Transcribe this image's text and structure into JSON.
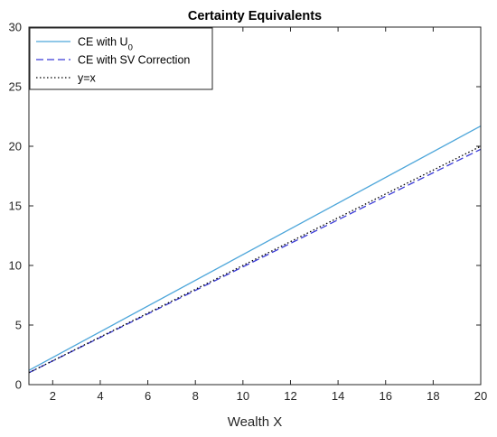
{
  "chart_data": {
    "type": "line",
    "title": "Certainty Equivalents",
    "xlabel": "Wealth X",
    "ylabel": "",
    "xlim": [
      1,
      20
    ],
    "ylim": [
      0,
      30
    ],
    "xticks": [
      2,
      4,
      6,
      8,
      10,
      12,
      14,
      16,
      18,
      20
    ],
    "yticks": [
      0,
      5,
      10,
      15,
      20,
      25,
      30
    ],
    "grid": false,
    "legend_position": "top-left",
    "series": [
      {
        "name": "CE with U0",
        "legend_main": "CE with U",
        "legend_sub": "0",
        "color": "#4DA6DA",
        "style": "solid",
        "x": [
          1,
          20
        ],
        "y": [
          1.2,
          21.7
        ]
      },
      {
        "name": "CE with SV Correction",
        "legend_main": "CE with SV Correction",
        "legend_sub": "",
        "color": "#3A3AD8",
        "style": "dashed",
        "x": [
          1,
          20
        ],
        "y": [
          1.0,
          19.75
        ]
      },
      {
        "name": "y=x",
        "legend_main": "y=x",
        "legend_sub": "",
        "color": "#000000",
        "style": "dotted",
        "x": [
          1,
          20
        ],
        "y": [
          1.0,
          20.0
        ]
      }
    ]
  }
}
